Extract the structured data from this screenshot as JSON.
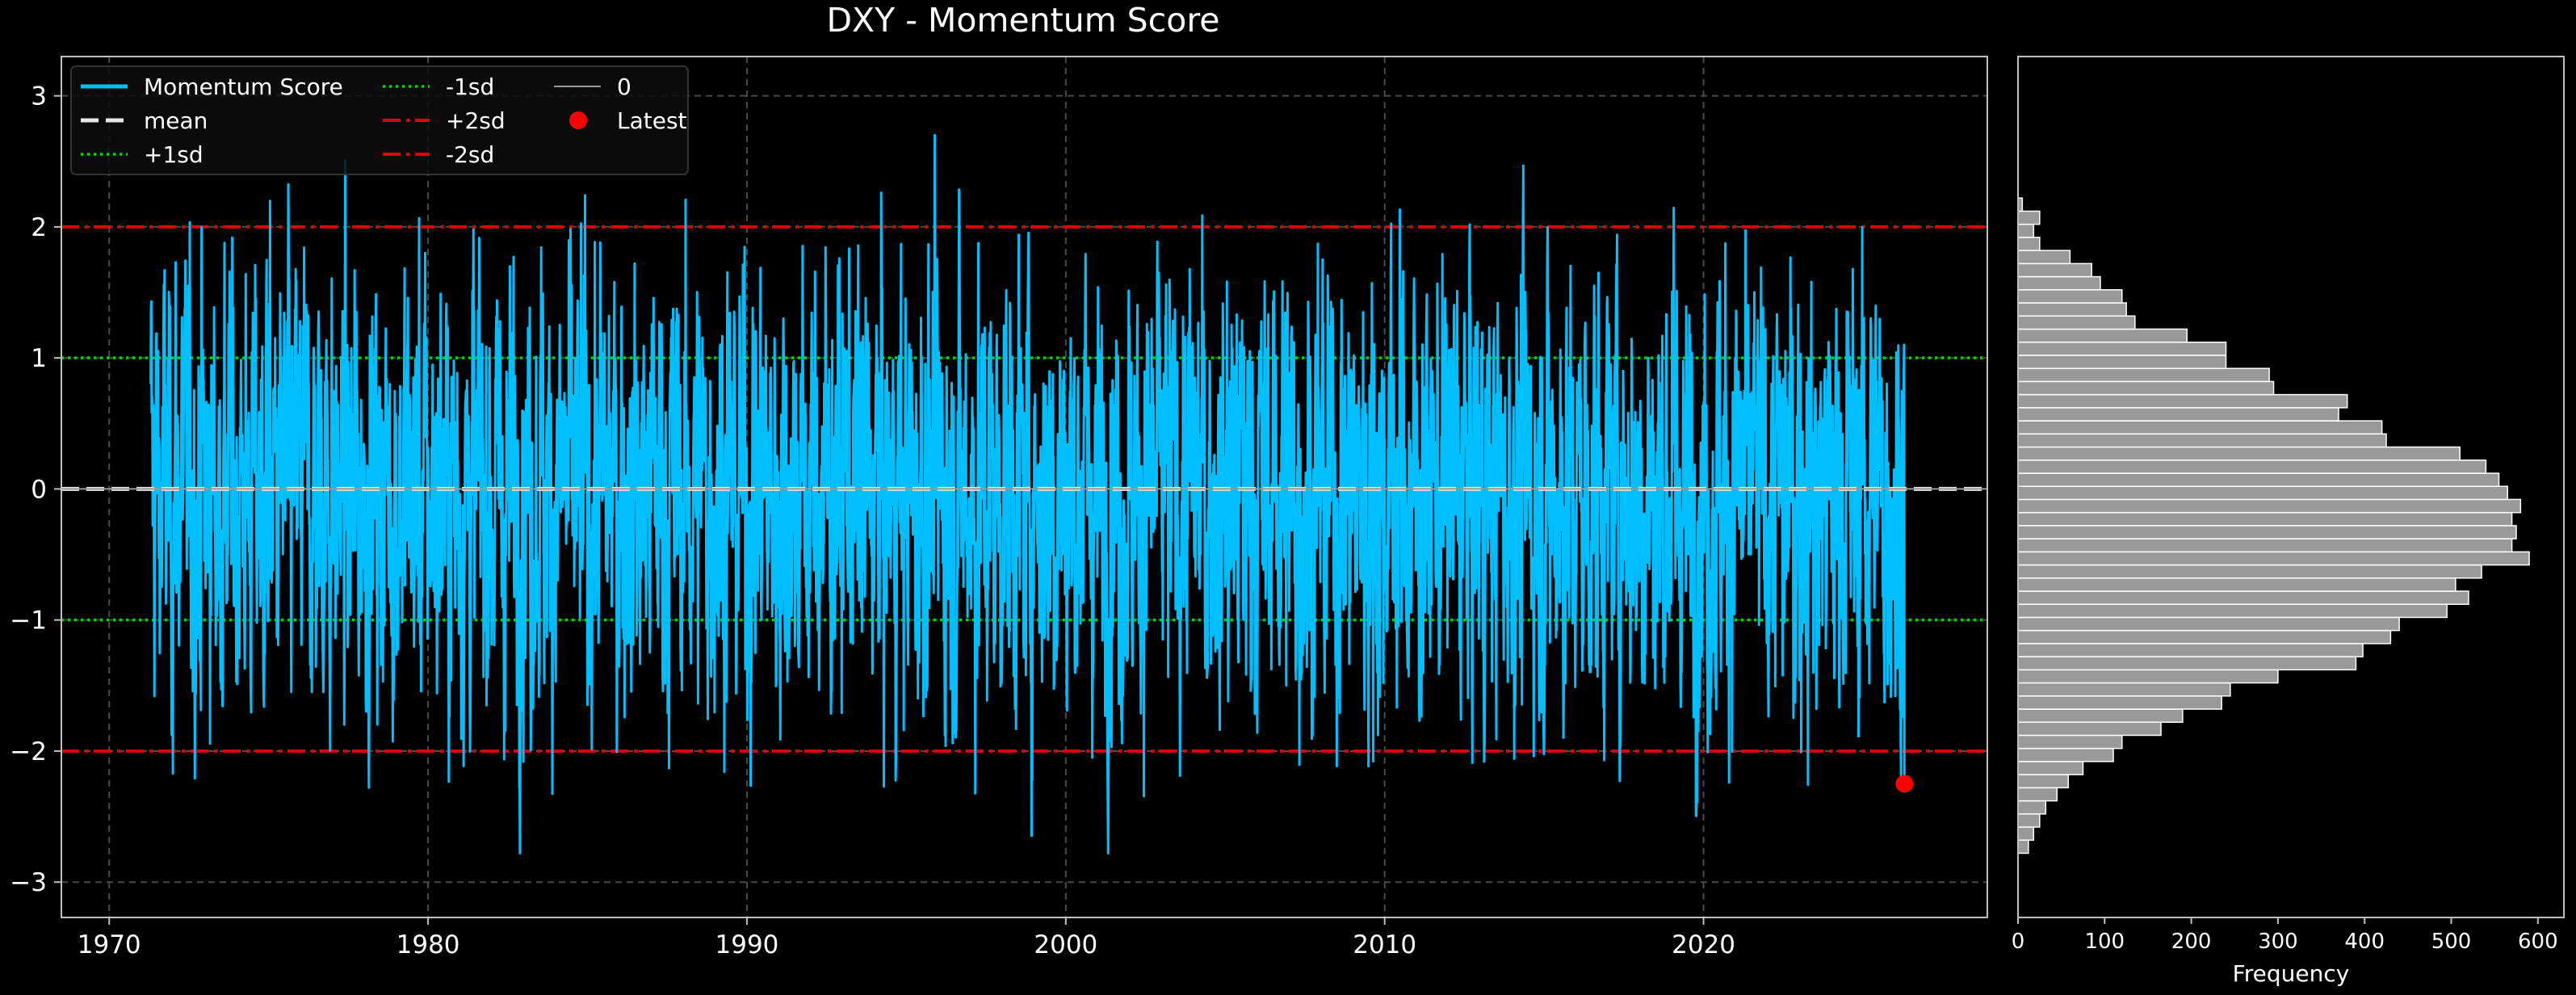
{
  "colors": {
    "background": "#000000",
    "series": "#00bfff",
    "mean": "#e6e6e6",
    "sd1": "#00d400",
    "sd2": "#e00000",
    "zero": "#9a9a9a",
    "latest": "#ff0000",
    "grid": "#4a4a4a",
    "axes": "#bfbfbf",
    "hist_bar": "#999999",
    "hist_edge": "#ffffff"
  },
  "chart_data": [
    {
      "type": "line",
      "title": "DXY - Momentum Score",
      "xlabel": "",
      "ylabel": "",
      "xlim": [
        1968.5,
        2028.9
      ],
      "ylim": [
        -3.27,
        3.3
      ],
      "x_ticks": [
        1970,
        1980,
        1990,
        2000,
        2010,
        2020
      ],
      "y_ticks": [
        -3,
        -2,
        -1,
        0,
        1,
        2,
        3
      ],
      "y_tick_labels": [
        "−3",
        "−2",
        "−1",
        "0",
        "1",
        "2",
        "3"
      ],
      "grid": true,
      "legend_position": "top-left",
      "series": [
        {
          "name": "Momentum Score",
          "x_start": 1971.3,
          "x_end": 2026.3,
          "y_min": -2.78,
          "y_max": 2.7,
          "latest_value": -2.25
        }
      ],
      "reference_lines": [
        {
          "name": "mean",
          "value": 0.0,
          "style": "dashed"
        },
        {
          "name": "+1sd",
          "value": 1.0,
          "style": "dotted"
        },
        {
          "name": "-1sd",
          "value": -1.0,
          "style": "dotted"
        },
        {
          "name": "+2sd",
          "value": 2.0,
          "style": "dashdot"
        },
        {
          "name": "-2sd",
          "value": -2.0,
          "style": "dashdot"
        },
        {
          "name": "0",
          "value": 0.0,
          "style": "solid"
        }
      ],
      "latest_point": {
        "name": "Latest",
        "x": 2026.3,
        "y": -2.25
      },
      "legend": [
        {
          "label": "Momentum Score",
          "key": "series"
        },
        {
          "label": "mean",
          "key": "mean"
        },
        {
          "label": "+1sd",
          "key": "sd1"
        },
        {
          "label": "-1sd",
          "key": "sd1"
        },
        {
          "label": "+2sd",
          "key": "sd2"
        },
        {
          "label": "-2sd",
          "key": "sd2"
        },
        {
          "label": "0",
          "key": "zero"
        },
        {
          "label": "Latest",
          "key": "latest"
        }
      ]
    },
    {
      "type": "bar",
      "orientation": "horizontal",
      "xlabel": "Frequency",
      "x_ticks": [
        0,
        100,
        200,
        300,
        400,
        500,
        600
      ],
      "xlim": [
        0,
        630
      ],
      "ylim": [
        -3.27,
        3.3
      ],
      "bin_start": -2.78,
      "bin_width": 0.1,
      "counts": [
        12,
        18,
        25,
        32,
        45,
        58,
        75,
        110,
        120,
        165,
        190,
        235,
        245,
        300,
        390,
        398,
        430,
        440,
        495,
        520,
        505,
        535,
        590,
        570,
        575,
        570,
        580,
        565,
        555,
        540,
        510,
        425,
        420,
        370,
        380,
        295,
        290,
        240,
        240,
        195,
        135,
        125,
        120,
        95,
        85,
        60,
        25,
        18,
        25,
        5
      ]
    }
  ]
}
